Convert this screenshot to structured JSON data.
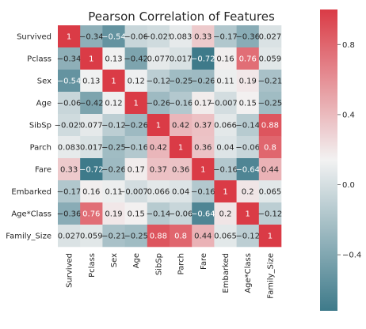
{
  "chart_data": {
    "type": "heatmap",
    "title": "Pearson Correlation of Features",
    "rows": [
      "Survived",
      "Pclass",
      "Sex",
      "Age",
      "SibSp",
      "Parch",
      "Fare",
      "Embarked",
      "Age*Class",
      "Family_Size"
    ],
    "columns": [
      "Survived",
      "Pclass",
      "Sex",
      "Age",
      "SibSp",
      "Parch",
      "Fare",
      "Embarked",
      "Age*Class",
      "Family_Size"
    ],
    "values": [
      [
        1,
        -0.34,
        -0.54,
        -0.06,
        -0.025,
        0.083,
        0.33,
        -0.17,
        -0.36,
        0.027
      ],
      [
        -0.34,
        1,
        0.13,
        -0.42,
        0.077,
        0.017,
        -0.72,
        0.16,
        0.76,
        0.059
      ],
      [
        -0.54,
        0.13,
        1,
        0.12,
        -0.12,
        -0.25,
        -0.26,
        0.11,
        0.19,
        -0.21
      ],
      [
        -0.06,
        -0.42,
        0.12,
        1,
        -0.26,
        -0.16,
        0.17,
        -0.0076,
        0.15,
        -0.25
      ],
      [
        -0.025,
        0.077,
        -0.12,
        -0.26,
        1,
        0.42,
        0.37,
        0.066,
        -0.14,
        0.88
      ],
      [
        0.083,
        0.017,
        -0.25,
        -0.16,
        0.42,
        1,
        0.36,
        0.04,
        -0.06,
        0.8
      ],
      [
        0.33,
        -0.72,
        -0.26,
        0.17,
        0.37,
        0.36,
        1,
        -0.16,
        -0.64,
        0.44
      ],
      [
        -0.17,
        0.16,
        0.11,
        -0.0076,
        0.066,
        0.04,
        -0.16,
        1,
        0.2,
        0.065
      ],
      [
        -0.36,
        0.76,
        0.19,
        0.15,
        -0.14,
        -0.06,
        -0.64,
        0.2,
        1,
        -0.12
      ],
      [
        0.027,
        0.059,
        -0.21,
        -0.25,
        0.88,
        0.8,
        0.44,
        0.065,
        -0.12,
        1
      ]
    ],
    "colorbar": {
      "ticks": [
        0.8,
        0.4,
        0.0,
        -0.4
      ],
      "tick_labels": [
        "0.8",
        "0.4",
        "0.0",
        "−0.4"
      ],
      "vmin": -0.72,
      "vmax": 1.0
    },
    "colors": {
      "low": "#3e7a8a",
      "mid": "#f2f2f2",
      "high": "#da3b46"
    }
  }
}
